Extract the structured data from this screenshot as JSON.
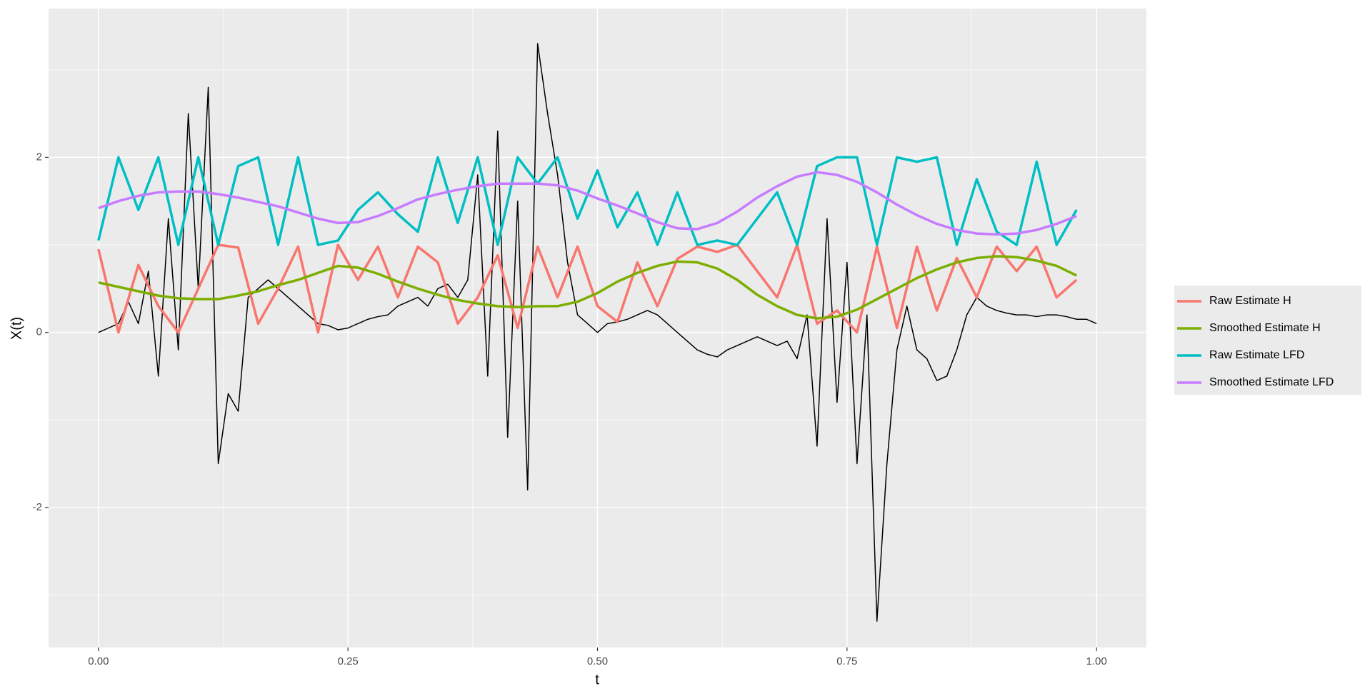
{
  "chart_data": {
    "type": "line",
    "x_label": "t",
    "y_label": "X(t)",
    "xlim": [
      -0.05,
      1.05
    ],
    "ylim": [
      -3.6,
      3.7
    ],
    "xticks": [
      {
        "value": 0,
        "label": "0.00"
      },
      {
        "value": 0.25,
        "label": "0.25"
      },
      {
        "value": 0.5,
        "label": "0.50"
      },
      {
        "value": 0.75,
        "label": "0.75"
      },
      {
        "value": 1,
        "label": "1.00"
      }
    ],
    "yticks": [
      -2,
      0,
      2
    ],
    "xminorticks": [
      0.125,
      0.375,
      0.625,
      0.875
    ],
    "yminorticks": [
      -3,
      -1,
      1,
      3
    ],
    "grid": true,
    "legend": "right",
    "series": [
      {
        "color": "#000000",
        "width": 1.5,
        "x": [
          0,
          0.01,
          0.02,
          0.03,
          0.04,
          0.05,
          0.06,
          0.07,
          0.08,
          0.09,
          0.1,
          0.11,
          0.12,
          0.13,
          0.14,
          0.15,
          0.16,
          0.17,
          0.18,
          0.19,
          0.2,
          0.21,
          0.22,
          0.23,
          0.24,
          0.25,
          0.26,
          0.27,
          0.28,
          0.29,
          0.3,
          0.31,
          0.32,
          0.33,
          0.34,
          0.35,
          0.36,
          0.37,
          0.38,
          0.39,
          0.4,
          0.41,
          0.42,
          0.43,
          0.44,
          0.45,
          0.46,
          0.47,
          0.48,
          0.49,
          0.5,
          0.51,
          0.52,
          0.53,
          0.54,
          0.55,
          0.56,
          0.57,
          0.58,
          0.59,
          0.6,
          0.61,
          0.62,
          0.63,
          0.64,
          0.65,
          0.66,
          0.67,
          0.68,
          0.69,
          0.7,
          0.71,
          0.72,
          0.73,
          0.74,
          0.75,
          0.76,
          0.77,
          0.78,
          0.79,
          0.8,
          0.81,
          0.82,
          0.83,
          0.84,
          0.85,
          0.86,
          0.87,
          0.88,
          0.89,
          0.9,
          0.91,
          0.92,
          0.93,
          0.94,
          0.95,
          0.96,
          0.97,
          0.98,
          0.99,
          1
        ],
        "values": [
          0,
          0.05,
          0.1,
          0.35,
          0.1,
          0.7,
          -0.5,
          1.3,
          -0.2,
          2.5,
          0.5,
          2.8,
          -1.5,
          -0.7,
          -0.9,
          0.4,
          0.5,
          0.6,
          0.5,
          0.4,
          0.3,
          0.2,
          0.1,
          0.08,
          0.03,
          0.05,
          0.1,
          0.15,
          0.18,
          0.2,
          0.3,
          0.35,
          0.4,
          0.3,
          0.5,
          0.55,
          0.4,
          0.6,
          1.8,
          -0.5,
          2.3,
          -1.2,
          1.5,
          -1.8,
          3.3,
          2.5,
          1.8,
          0.8,
          0.2,
          0.1,
          0,
          0.1,
          0.12,
          0.15,
          0.2,
          0.25,
          0.2,
          0.1,
          0,
          -0.1,
          -0.2,
          -0.25,
          -0.28,
          -0.2,
          -0.15,
          -0.1,
          -0.05,
          -0.1,
          -0.15,
          -0.1,
          -0.3,
          0.2,
          -1.3,
          1.3,
          -0.8,
          0.8,
          -1.5,
          0.2,
          -3.3,
          -1.5,
          -0.2,
          0.3,
          -0.2,
          -0.3,
          -0.55,
          -0.5,
          -0.2,
          0.2,
          0.4,
          0.3,
          0.25,
          0.22,
          0.2,
          0.2,
          0.18,
          0.2,
          0.2,
          0.18,
          0.15,
          0.15,
          0.1
        ]
      },
      {
        "name": "Raw Estimate H",
        "color": "#f8766d",
        "width": 3.5,
        "x": [
          0,
          0.02,
          0.04,
          0.06,
          0.08,
          0.1,
          0.12,
          0.14,
          0.16,
          0.18,
          0.2,
          0.22,
          0.24,
          0.26,
          0.28,
          0.3,
          0.32,
          0.34,
          0.36,
          0.38,
          0.4,
          0.42,
          0.44,
          0.46,
          0.48,
          0.5,
          0.52,
          0.54,
          0.56,
          0.58,
          0.6,
          0.62,
          0.64,
          0.66,
          0.68,
          0.7,
          0.72,
          0.74,
          0.76,
          0.78,
          0.8,
          0.82,
          0.84,
          0.86,
          0.88,
          0.9,
          0.92,
          0.94,
          0.96,
          0.98
        ],
        "values": [
          0.95,
          0,
          0.77,
          0.3,
          0,
          0.5,
          1.0,
          0.97,
          0.1,
          0.5,
          0.98,
          0,
          1.0,
          0.6,
          0.98,
          0.4,
          0.98,
          0.8,
          0.1,
          0.4,
          0.88,
          0.05,
          0.98,
          0.4,
          0.98,
          0.3,
          0.12,
          0.8,
          0.3,
          0.84,
          0.98,
          0.92,
          1.0,
          0.7,
          0.4,
          1.0,
          0.1,
          0.25,
          0,
          0.98,
          0.05,
          0.98,
          0.25,
          0.85,
          0.4,
          0.98,
          0.7,
          0.98,
          0.4,
          0.6
        ]
      },
      {
        "name": "Smoothed Estimate H",
        "color": "#7cae00",
        "width": 3.5,
        "x": [
          0,
          0.02,
          0.04,
          0.06,
          0.08,
          0.1,
          0.12,
          0.14,
          0.16,
          0.18,
          0.2,
          0.22,
          0.24,
          0.26,
          0.28,
          0.3,
          0.32,
          0.34,
          0.36,
          0.38,
          0.4,
          0.42,
          0.44,
          0.46,
          0.48,
          0.5,
          0.52,
          0.54,
          0.56,
          0.58,
          0.6,
          0.62,
          0.64,
          0.66,
          0.68,
          0.7,
          0.72,
          0.74,
          0.76,
          0.78,
          0.8,
          0.82,
          0.84,
          0.86,
          0.88,
          0.9,
          0.92,
          0.94,
          0.96,
          0.98
        ],
        "values": [
          0.57,
          0.52,
          0.47,
          0.42,
          0.39,
          0.38,
          0.38,
          0.42,
          0.47,
          0.54,
          0.6,
          0.68,
          0.76,
          0.74,
          0.67,
          0.58,
          0.5,
          0.43,
          0.37,
          0.33,
          0.3,
          0.29,
          0.3,
          0.3,
          0.35,
          0.45,
          0.58,
          0.68,
          0.76,
          0.81,
          0.8,
          0.73,
          0.6,
          0.43,
          0.3,
          0.2,
          0.16,
          0.18,
          0.26,
          0.38,
          0.5,
          0.62,
          0.72,
          0.8,
          0.85,
          0.87,
          0.86,
          0.82,
          0.76,
          0.65
        ]
      },
      {
        "name": "Raw Estimate LFD",
        "color": "#00bfc4",
        "width": 3.5,
        "x": [
          0,
          0.02,
          0.04,
          0.06,
          0.08,
          0.1,
          0.12,
          0.14,
          0.16,
          0.18,
          0.2,
          0.22,
          0.24,
          0.26,
          0.28,
          0.3,
          0.32,
          0.34,
          0.36,
          0.38,
          0.4,
          0.42,
          0.44,
          0.46,
          0.48,
          0.5,
          0.52,
          0.54,
          0.56,
          0.58,
          0.6,
          0.62,
          0.64,
          0.66,
          0.68,
          0.7,
          0.72,
          0.74,
          0.76,
          0.78,
          0.8,
          0.82,
          0.84,
          0.86,
          0.88,
          0.9,
          0.92,
          0.94,
          0.96,
          0.98
        ],
        "values": [
          1.05,
          2.0,
          1.4,
          2.0,
          1.0,
          2.0,
          1.0,
          1.9,
          2.0,
          1.0,
          2.0,
          1.0,
          1.05,
          1.4,
          1.6,
          1.35,
          1.15,
          2.0,
          1.25,
          2.0,
          1.0,
          2.0,
          1.7,
          2.0,
          1.3,
          1.85,
          1.2,
          1.6,
          1.0,
          1.6,
          1.0,
          1.05,
          1.0,
          1.3,
          1.6,
          1.0,
          1.9,
          2.0,
          2.0,
          1.0,
          2.0,
          1.95,
          2.0,
          1.0,
          1.75,
          1.15,
          1.0,
          1.95,
          1.0,
          1.4
        ]
      },
      {
        "name": "Smoothed Estimate LFD",
        "color": "#c77cff",
        "width": 3.5,
        "x": [
          0,
          0.02,
          0.04,
          0.06,
          0.08,
          0.1,
          0.12,
          0.14,
          0.16,
          0.18,
          0.2,
          0.22,
          0.24,
          0.26,
          0.28,
          0.3,
          0.32,
          0.34,
          0.36,
          0.38,
          0.4,
          0.42,
          0.44,
          0.46,
          0.48,
          0.5,
          0.52,
          0.54,
          0.56,
          0.58,
          0.6,
          0.62,
          0.64,
          0.66,
          0.68,
          0.7,
          0.72,
          0.74,
          0.76,
          0.78,
          0.8,
          0.82,
          0.84,
          0.86,
          0.88,
          0.9,
          0.92,
          0.94,
          0.96,
          0.98
        ],
        "values": [
          1.42,
          1.5,
          1.56,
          1.6,
          1.61,
          1.61,
          1.58,
          1.54,
          1.49,
          1.44,
          1.37,
          1.3,
          1.25,
          1.26,
          1.33,
          1.42,
          1.52,
          1.58,
          1.63,
          1.67,
          1.7,
          1.7,
          1.7,
          1.68,
          1.62,
          1.53,
          1.45,
          1.36,
          1.26,
          1.19,
          1.18,
          1.25,
          1.38,
          1.54,
          1.67,
          1.78,
          1.83,
          1.8,
          1.72,
          1.6,
          1.46,
          1.34,
          1.24,
          1.17,
          1.13,
          1.12,
          1.13,
          1.17,
          1.24,
          1.33
        ]
      }
    ]
  }
}
